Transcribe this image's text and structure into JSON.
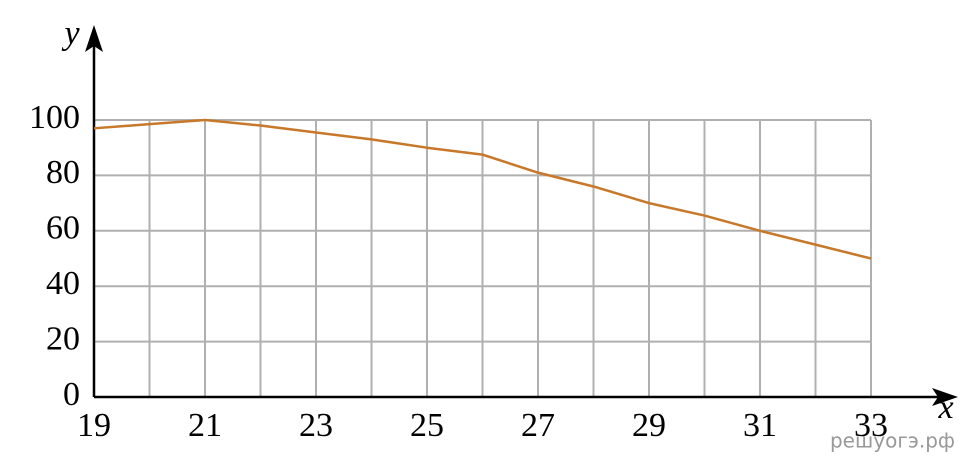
{
  "chart_data": {
    "type": "line",
    "x_label": "x",
    "y_label": "y",
    "x": [
      19,
      20,
      21,
      22,
      23,
      24,
      25,
      26,
      27,
      28,
      29,
      30,
      31,
      32,
      33
    ],
    "series": [
      {
        "color": "#c8782a",
        "values": [
          97,
          98.5,
          100,
          98,
          95.5,
          93,
          90,
          87.5,
          81,
          76,
          70,
          65.5,
          60,
          55,
          50
        ]
      }
    ],
    "xlim": [
      19,
      33
    ],
    "ylim": [
      0,
      100
    ],
    "xticks": [
      19,
      21,
      23,
      25,
      27,
      29,
      31,
      33
    ],
    "xgrid": [
      19,
      20,
      21,
      22,
      23,
      24,
      25,
      26,
      27,
      28,
      29,
      30,
      31,
      32,
      33
    ],
    "yticks": [
      0,
      20,
      40,
      60,
      80,
      100
    ],
    "grid": true,
    "watermark": "решуогэ.рф"
  }
}
